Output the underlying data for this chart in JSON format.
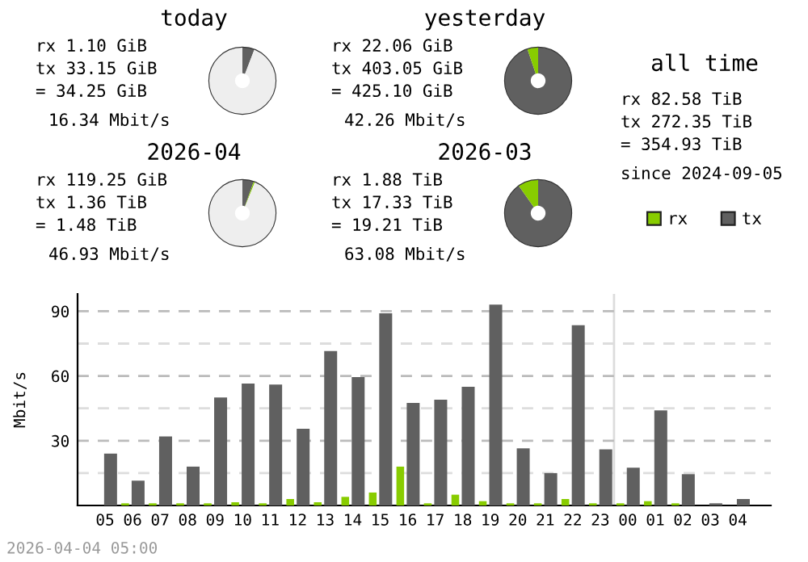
{
  "chart_data": [
    {
      "type": "donut",
      "title": "today",
      "categories": [
        null,
        null,
        null
      ],
      "values": [
        5.8,
        null,
        94
      ],
      "colors": [
        "#606060",
        "#88cc00",
        "#eeeeee"
      ],
      "annotations": [
        "rx 1.10 GiB",
        "tx 33.15 GiB",
        "= 34.25 GiB",
        "16.34 Mbit/s"
      ]
    },
    {
      "type": "donut",
      "title": "yesterday",
      "categories": [
        null,
        null
      ],
      "values": [
        94.8,
        5.2
      ],
      "colors": [
        "#606060",
        "#88cc00"
      ],
      "annotations": [
        "rx 22.06 GiB",
        "tx 403.05 GiB",
        "= 425.10 GiB",
        "42.26 Mbit/s"
      ]
    },
    {
      "type": "other",
      "title": "all time",
      "annotations": [
        "rx 82.58 TiB",
        "tx 272.35 TiB",
        "= 354.93 TiB",
        "since 2024-09-05"
      ]
    },
    {
      "type": "donut",
      "title": "2026-04",
      "categories": [
        null,
        null,
        null
      ],
      "values": [
        5.5,
        0.6,
        93.9
      ],
      "colors": [
        "#606060",
        "#88cc00",
        "#eeeeee"
      ],
      "annotations": [
        "rx 119.25 GiB",
        "tx 1.36 TiB",
        "= 1.48 TiB",
        "46.93 Mbit/s"
      ]
    },
    {
      "type": "donut",
      "title": "2026-03",
      "categories": [
        null,
        null
      ],
      "values": [
        90.2,
        9.8
      ],
      "colors": [
        "#606060",
        "#88cc00"
      ],
      "annotations": [
        "rx 1.88 TiB",
        "tx 17.33 TiB",
        "= 19.21 TiB",
        "63.08 Mbit/s"
      ]
    },
    {
      "type": "bar",
      "ylabel": "Mbit/s",
      "categories": [
        "05",
        "06",
        "07",
        "08",
        "09",
        "10",
        "11",
        "12",
        "13",
        "14",
        "15",
        "16",
        "17",
        "18",
        "19",
        "20",
        "21",
        "22",
        "23",
        "00",
        "01",
        "02",
        "03",
        "04"
      ],
      "series": [
        {
          "name": "rx",
          "color": "#88cc00",
          "values": [
            0,
            1,
            1,
            1,
            1,
            1.5,
            1,
            3,
            1.5,
            4,
            6,
            18,
            1,
            5,
            2,
            1,
            1,
            3,
            1,
            1,
            2,
            1,
            0,
            0
          ]
        },
        {
          "name": "tx",
          "color": "#606060",
          "values": [
            24,
            11.5,
            32,
            18,
            50,
            56.5,
            56,
            35.5,
            71.5,
            59.5,
            89,
            47.5,
            49,
            55,
            93,
            26.5,
            15,
            83.5,
            26,
            17.5,
            44,
            14.5,
            1,
            3
          ]
        }
      ],
      "ylim": [
        0,
        98
      ],
      "yticks": [
        {
          "value": 15,
          "label": null
        },
        30,
        {
          "value": 45,
          "label": null
        },
        60,
        {
          "value": 75,
          "label": null
        },
        90
      ],
      "grid": "y",
      "legend": "top right",
      "tick_labels": "xy",
      "ref_lines": [
        {
          "axis": "x",
          "value": "00",
          "color": "#dddddd"
        }
      ],
      "annotations": [
        "2026-04-04 05:00"
      ]
    }
  ]
}
